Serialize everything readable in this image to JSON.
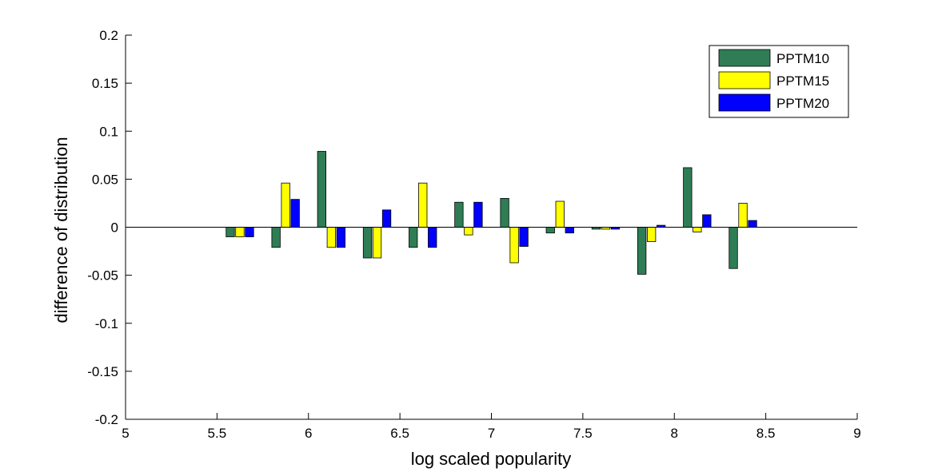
{
  "chart_data": {
    "type": "bar",
    "xlabel": "log scaled popularity",
    "ylabel": "difference of distribution",
    "xlim": [
      5,
      9
    ],
    "ylim": [
      -0.2,
      0.2
    ],
    "x_ticks": [
      "5",
      "5.5",
      "6",
      "6.5",
      "7",
      "7.5",
      "8",
      "8.5",
      "9"
    ],
    "y_ticks": [
      "-0.2",
      "-0.15",
      "-0.1",
      "-0.05",
      "0",
      "0.05",
      "0.1",
      "0.15",
      "0.2"
    ],
    "legend_position": "top-right",
    "grid": false,
    "x": [
      5.625,
      5.875,
      6.125,
      6.375,
      6.625,
      6.875,
      7.125,
      7.375,
      7.625,
      7.875,
      8.125,
      8.375
    ],
    "series": [
      {
        "name": "PPTM10",
        "color": "#2e7d55",
        "values": [
          -0.01,
          -0.021,
          0.079,
          -0.032,
          -0.021,
          0.026,
          0.03,
          -0.006,
          -0.002,
          -0.049,
          0.062,
          -0.043
        ]
      },
      {
        "name": "PPTM15",
        "color": "#ffff00",
        "values": [
          -0.01,
          0.046,
          -0.021,
          -0.032,
          0.046,
          -0.008,
          -0.037,
          0.027,
          -0.002,
          -0.015,
          -0.005,
          0.025
        ]
      },
      {
        "name": "PPTM20",
        "color": "#0000ff",
        "values": [
          -0.01,
          0.029,
          -0.021,
          0.018,
          -0.021,
          0.026,
          -0.02,
          -0.006,
          -0.002,
          0.002,
          0.013,
          0.007
        ]
      }
    ]
  }
}
